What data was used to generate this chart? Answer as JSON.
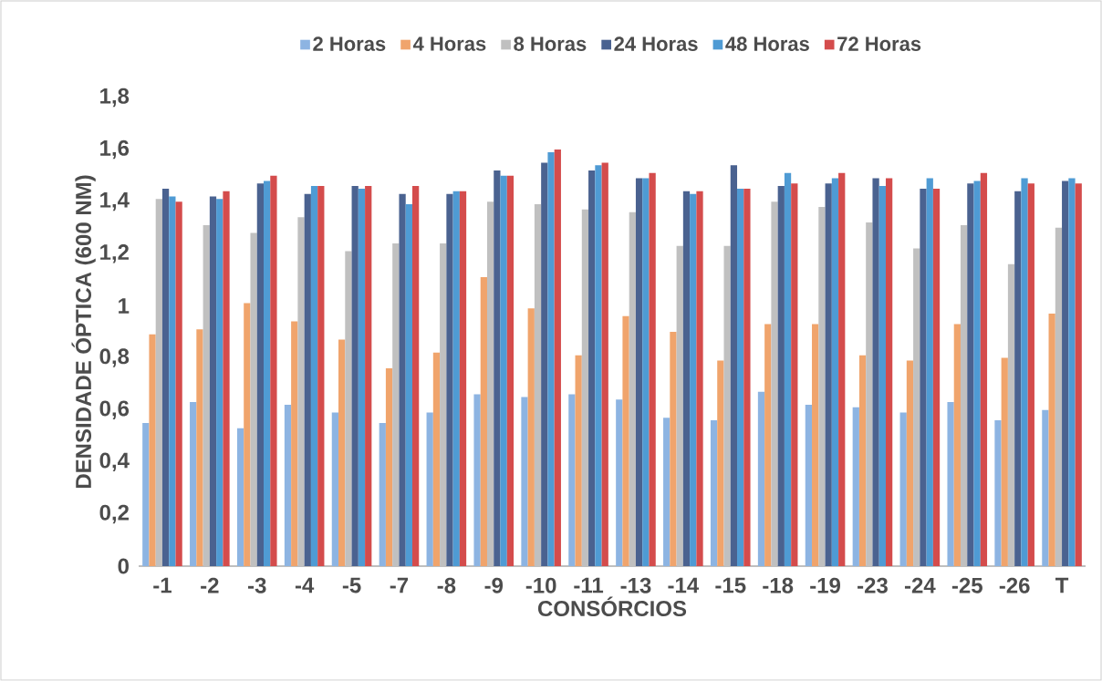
{
  "chart_data": {
    "type": "bar",
    "xlabel": "CONSÓRCIOS",
    "ylabel": "DENSIDADE ÓPTICA (600 NM)",
    "categories": [
      "-1",
      "-2",
      "-3",
      "-4",
      "-5",
      "-7",
      "-8",
      "-9",
      "-10",
      "-11",
      "-13",
      "-14",
      "-15",
      "-18",
      "-19",
      "-23",
      "-24",
      "-25",
      "-26",
      "T"
    ],
    "series": [
      {
        "name": "2 Horas",
        "color": "#8db4e2",
        "values": [
          0.55,
          0.63,
          0.53,
          0.62,
          0.59,
          0.55,
          0.59,
          0.66,
          0.65,
          0.66,
          0.64,
          0.57,
          0.56,
          0.67,
          0.62,
          0.61,
          0.59,
          0.63,
          0.56,
          0.6
        ]
      },
      {
        "name": "4 Horas",
        "color": "#f0a46c",
        "values": [
          0.89,
          0.91,
          1.01,
          0.94,
          0.87,
          0.76,
          0.82,
          1.11,
          0.99,
          0.81,
          0.96,
          0.9,
          0.79,
          0.93,
          0.93,
          0.81,
          0.79,
          0.93,
          0.8,
          0.97
        ]
      },
      {
        "name": "8 Horas",
        "color": "#c0c0c0",
        "values": [
          1.41,
          1.31,
          1.28,
          1.34,
          1.21,
          1.24,
          1.24,
          1.4,
          1.39,
          1.37,
          1.36,
          1.23,
          1.23,
          1.4,
          1.38,
          1.32,
          1.22,
          1.31,
          1.16,
          1.3
        ]
      },
      {
        "name": "24 Horas",
        "color": "#4a6290",
        "values": [
          1.45,
          1.42,
          1.47,
          1.43,
          1.46,
          1.43,
          1.43,
          1.52,
          1.55,
          1.52,
          1.49,
          1.44,
          1.54,
          1.46,
          1.47,
          1.49,
          1.45,
          1.47,
          1.44,
          1.48
        ]
      },
      {
        "name": "48 Horas",
        "color": "#4f9bd4",
        "values": [
          1.42,
          1.41,
          1.48,
          1.46,
          1.45,
          1.39,
          1.44,
          1.5,
          1.59,
          1.54,
          1.49,
          1.43,
          1.45,
          1.51,
          1.49,
          1.46,
          1.49,
          1.48,
          1.49,
          1.49
        ]
      },
      {
        "name": "72 Horas",
        "color": "#d44c4c",
        "values": [
          1.4,
          1.44,
          1.5,
          1.46,
          1.46,
          1.46,
          1.44,
          1.5,
          1.6,
          1.55,
          1.51,
          1.44,
          1.45,
          1.47,
          1.51,
          1.49,
          1.45,
          1.51,
          1.47,
          1.47
        ]
      }
    ],
    "ylim": [
      0,
      1.8
    ],
    "yticks": [
      0,
      {
        "value": 0.2,
        "label": "0,2"
      },
      {
        "value": 0.4,
        "label": "0,4"
      },
      {
        "value": 0.6,
        "label": "0,6"
      },
      {
        "value": 0.8,
        "label": "0,8"
      },
      1,
      {
        "value": 1.2,
        "label": "1,2"
      },
      {
        "value": 1.4,
        "label": "1,4"
      },
      {
        "value": 1.6,
        "label": "1,6"
      },
      {
        "value": 1.8,
        "label": "1,8"
      }
    ],
    "legend": "top",
    "grid": false
  }
}
